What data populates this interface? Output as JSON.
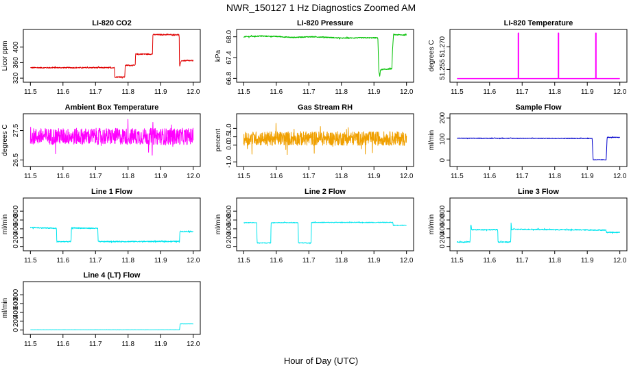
{
  "figure": {
    "title": "NWR_150127  1 Hz Diagnostics Zoomed AM",
    "xlabel": "Hour of Day (UTC)"
  },
  "chart_data": [
    {
      "id": "co2",
      "type": "line",
      "title": "Li-820 CO2",
      "ylabel": "Licor ppm",
      "color": "#e00000",
      "xlim": [
        11.5,
        12.0
      ],
      "xticks": [
        11.5,
        11.6,
        11.7,
        11.8,
        11.9,
        12.0
      ],
      "xtick_labels": [
        "11.5",
        "11.6",
        "11.7",
        "11.8",
        "11.9",
        "12.0"
      ],
      "ylim": [
        315,
        440
      ],
      "yticks": [
        320,
        360,
        400
      ],
      "ytick_labels": [
        "320",
        "360",
        "400"
      ],
      "noise": 1.5,
      "x": [
        11.5,
        11.758,
        11.759,
        11.79,
        11.791,
        11.822,
        11.823,
        11.875,
        11.876,
        11.957,
        11.958,
        11.962,
        11.963,
        12.0
      ],
      "y": [
        347,
        347,
        323,
        323,
        353,
        353,
        382,
        382,
        432,
        432,
        348,
        362,
        365,
        365
      ]
    },
    {
      "id": "pressure",
      "type": "line",
      "title": "Li-820 Pressure",
      "ylabel": "kPa",
      "color": "#00c000",
      "xlim": [
        11.5,
        12.0
      ],
      "xticks": [
        11.5,
        11.6,
        11.7,
        11.8,
        11.9,
        12.0
      ],
      "xtick_labels": [
        "11.5",
        "11.6",
        "11.7",
        "11.8",
        "11.9",
        "12.0"
      ],
      "ylim": [
        66.75,
        68.15
      ],
      "yticks": [
        66.8,
        67.4,
        68.0
      ],
      "ytick_labels": [
        "66.8",
        "67.4",
        "68.0"
      ],
      "noise": 0.015,
      "x": [
        11.5,
        11.55,
        11.6,
        11.65,
        11.7,
        11.75,
        11.8,
        11.85,
        11.9,
        11.912,
        11.915,
        11.918,
        11.92,
        11.955,
        11.957,
        11.96,
        11.965,
        12.0
      ],
      "y": [
        68.0,
        68.02,
        68.01,
        67.98,
        68.0,
        67.99,
        67.96,
        67.97,
        67.97,
        67.97,
        67.0,
        66.85,
        67.05,
        67.08,
        67.6,
        68.05,
        68.06,
        68.05
      ]
    },
    {
      "id": "temperature",
      "type": "line",
      "title": "Li-820 Temperature",
      "ylabel": "degrees C",
      "color": "#ff00ff",
      "xlim": [
        11.5,
        12.0
      ],
      "xticks": [
        11.5,
        11.6,
        11.7,
        11.8,
        11.9,
        12.0
      ],
      "xtick_labels": [
        "11.5",
        "11.6",
        "11.7",
        "11.8",
        "11.9",
        "12.0"
      ],
      "ylim": [
        51.248,
        51.28
      ],
      "yticks": [
        51.255,
        51.27
      ],
      "ytick_labels": [
        "51.255",
        "51.270"
      ],
      "noise": 0,
      "x": [
        11.5,
        11.688,
        11.688,
        11.688,
        11.689,
        11.689,
        11.811,
        11.811,
        11.811,
        11.812,
        11.812,
        11.926,
        11.926,
        11.926,
        11.927,
        11.927,
        12.0
      ],
      "y": [
        51.249,
        51.249,
        51.253,
        51.279,
        51.279,
        51.249,
        51.249,
        51.256,
        51.279,
        51.279,
        51.249,
        51.249,
        51.256,
        51.279,
        51.279,
        51.249,
        51.249
      ]
    },
    {
      "id": "ambient",
      "type": "line",
      "title": "Ambient Box Temperature",
      "ylabel": "degrees C",
      "color": "#ff00ff",
      "xlim": [
        11.5,
        12.0
      ],
      "xticks": [
        11.5,
        11.6,
        11.7,
        11.8,
        11.9,
        12.0
      ],
      "xtick_labels": [
        "11.5",
        "11.6",
        "11.7",
        "11.8",
        "11.9",
        "12.0"
      ],
      "ylim": [
        26.35,
        28.0
      ],
      "yticks": [
        26.5,
        27.5
      ],
      "ytick_labels": [
        "26.5",
        "27.5"
      ],
      "noise": 0.28,
      "x": [
        11.5,
        12.0
      ],
      "y": [
        27.3,
        27.3
      ]
    },
    {
      "id": "rh",
      "type": "line",
      "title": "Gas Stream RH",
      "ylabel": "percent",
      "color": "#f0a000",
      "xlim": [
        11.5,
        12.0
      ],
      "xticks": [
        11.5,
        11.6,
        11.7,
        11.8,
        11.9,
        12.0
      ],
      "xtick_labels": [
        "11.5",
        "11.6",
        "11.7",
        "11.8",
        "11.9",
        "12.0"
      ],
      "ylim": [
        -1.15,
        1.75
      ],
      "yticks": [
        -1.0,
        0.0,
        0.5,
        1.0
      ],
      "ytick_labels": [
        "-1.0",
        "0.0",
        "0.5",
        "1.0"
      ],
      "noise": 0.42,
      "x": [
        11.5,
        12.0
      ],
      "y": [
        0.4,
        0.4
      ]
    },
    {
      "id": "sample",
      "type": "line",
      "title": "Sample Flow",
      "ylabel": "ml/min",
      "color": "#0000cc",
      "xlim": [
        11.5,
        12.0
      ],
      "xticks": [
        11.5,
        11.6,
        11.7,
        11.8,
        11.9,
        12.0
      ],
      "xtick_labels": [
        "11.5",
        "11.6",
        "11.7",
        "11.8",
        "11.9",
        "12.0"
      ],
      "ylim": [
        -20,
        210
      ],
      "yticks": [
        0,
        100,
        200
      ],
      "ytick_labels": [
        "0",
        "100",
        "200"
      ],
      "noise": 1.5,
      "x": [
        11.5,
        11.915,
        11.918,
        11.958,
        11.961,
        12.0
      ],
      "y": [
        104,
        103,
        2,
        2,
        108,
        108
      ]
    },
    {
      "id": "line1",
      "type": "line",
      "title": "Line 1 Flow",
      "ylabel": "ml/min",
      "color": "#00e5ee",
      "xlim": [
        11.5,
        12.0
      ],
      "xticks": [
        11.5,
        11.6,
        11.7,
        11.8,
        11.9,
        12.0
      ],
      "xtick_labels": [
        "11.5",
        "11.6",
        "11.7",
        "11.8",
        "11.9",
        "12.0"
      ],
      "ylim": [
        -50,
        1050
      ],
      "yticks": [
        0,
        200,
        400,
        600,
        800
      ],
      "ytick_labels": [
        "0",
        "200",
        "400",
        "600",
        "800"
      ],
      "noise": 12,
      "x": [
        11.5,
        11.58,
        11.581,
        11.625,
        11.626,
        11.707,
        11.708,
        11.958,
        11.959,
        12.0
      ],
      "y": [
        430,
        410,
        110,
        110,
        420,
        410,
        110,
        115,
        340,
        340
      ]
    },
    {
      "id": "line2",
      "type": "line",
      "title": "Line 2 Flow",
      "ylabel": "ml/min",
      "color": "#00e5ee",
      "xlim": [
        11.5,
        12.0
      ],
      "xticks": [
        11.5,
        11.6,
        11.7,
        11.8,
        11.9,
        12.0
      ],
      "xtick_labels": [
        "11.5",
        "11.6",
        "11.7",
        "11.8",
        "11.9",
        "12.0"
      ],
      "ylim": [
        -50,
        1050
      ],
      "yticks": [
        0,
        200,
        400,
        600,
        800
      ],
      "ytick_labels": [
        "0",
        "200",
        "400",
        "600",
        "800"
      ],
      "noise": 8,
      "x": [
        11.5,
        11.54,
        11.541,
        11.583,
        11.584,
        11.667,
        11.668,
        11.707,
        11.708,
        11.958,
        11.959,
        12.0
      ],
      "y": [
        540,
        540,
        80,
        80,
        540,
        540,
        80,
        80,
        545,
        545,
        480,
        480
      ]
    },
    {
      "id": "line3",
      "type": "line",
      "title": "Line 3 Flow",
      "ylabel": "ml/min",
      "color": "#00e5ee",
      "xlim": [
        11.5,
        12.0
      ],
      "xticks": [
        11.5,
        11.6,
        11.7,
        11.8,
        11.9,
        12.0
      ],
      "xtick_labels": [
        "11.5",
        "11.6",
        "11.7",
        "11.8",
        "11.9",
        "12.0"
      ],
      "ylim": [
        -50,
        1050
      ],
      "yticks": [
        0,
        200,
        400,
        600,
        800
      ],
      "ytick_labels": [
        "0",
        "200",
        "400",
        "600",
        "800"
      ],
      "noise": 12,
      "x": [
        11.5,
        11.54,
        11.541,
        11.543,
        11.545,
        11.625,
        11.626,
        11.665,
        11.666,
        11.668,
        11.67,
        11.958,
        11.959,
        12.0
      ],
      "y": [
        100,
        100,
        400,
        500,
        380,
        380,
        100,
        100,
        540,
        380,
        390,
        370,
        320,
        320
      ]
    },
    {
      "id": "line4",
      "type": "line",
      "title": "Line 4 (LT) Flow",
      "ylabel": "ml/min",
      "color": "#00e5ee",
      "xlim": [
        11.5,
        12.0
      ],
      "xticks": [
        11.5,
        11.6,
        11.7,
        11.8,
        11.9,
        12.0
      ],
      "xtick_labels": [
        "11.5",
        "11.6",
        "11.7",
        "11.8",
        "11.9",
        "12.0"
      ],
      "ylim": [
        -50,
        1050
      ],
      "yticks": [
        0,
        200,
        400,
        600,
        800
      ],
      "ytick_labels": [
        "0",
        "200",
        "400",
        "600",
        "800"
      ],
      "noise": 2,
      "x": [
        11.5,
        11.958,
        11.96,
        12.0
      ],
      "y": [
        5,
        5,
        140,
        140
      ]
    }
  ]
}
